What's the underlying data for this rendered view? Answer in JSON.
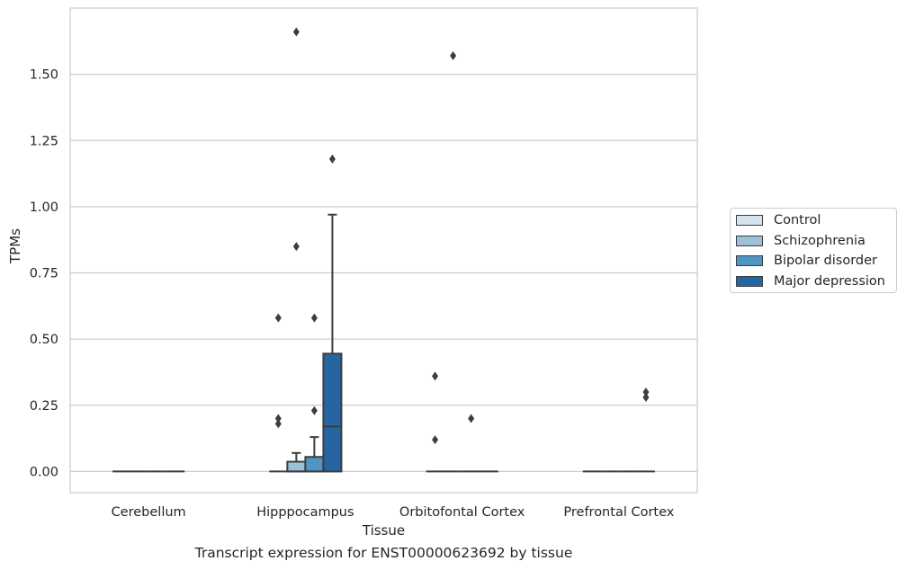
{
  "chart_data": {
    "type": "box",
    "caption": "Transcript expression for ENST00000623692 by tissue",
    "xlabel": "Tissue",
    "ylabel": "TPMs",
    "ylim": [
      -0.08,
      1.75
    ],
    "yticks": [
      "0.00",
      "0.25",
      "0.50",
      "0.75",
      "1.00",
      "1.25",
      "1.50"
    ],
    "grid": "horizontal",
    "legend_position": "right",
    "categories": [
      "Cerebellum",
      "Hipppocampus",
      "Orbitofontal Cortex",
      "Prefrontal Cortex"
    ],
    "series": [
      {
        "name": "Control",
        "color": "#d5e3ef",
        "boxes": [
          {
            "q1": 0,
            "median": 0,
            "q3": 0,
            "whislo": 0,
            "whishi": 0,
            "fliers": []
          },
          {
            "q1": 0,
            "median": 0,
            "q3": 0,
            "whislo": 0,
            "whishi": 0,
            "fliers": [
              0.18,
              0.2,
              0.58
            ]
          },
          {
            "q1": 0,
            "median": 0,
            "q3": 0,
            "whislo": 0,
            "whishi": 0,
            "fliers": [
              0.12,
              0.36
            ]
          },
          {
            "q1": 0,
            "median": 0,
            "q3": 0,
            "whislo": 0,
            "whishi": 0,
            "fliers": []
          }
        ]
      },
      {
        "name": "Schizophrenia",
        "color": "#9ac1d8",
        "boxes": [
          {
            "q1": 0,
            "median": 0,
            "q3": 0,
            "whislo": 0,
            "whishi": 0,
            "fliers": []
          },
          {
            "q1": 0,
            "median": 0,
            "q3": 0.037,
            "whislo": 0,
            "whishi": 0.07,
            "fliers": [
              0.85,
              1.66
            ]
          },
          {
            "q1": 0,
            "median": 0,
            "q3": 0,
            "whislo": 0,
            "whishi": 0,
            "fliers": [
              1.57
            ]
          },
          {
            "q1": 0,
            "median": 0,
            "q3": 0,
            "whislo": 0,
            "whishi": 0,
            "fliers": []
          }
        ]
      },
      {
        "name": "Bipolar disorder",
        "color": "#5096c2",
        "boxes": [
          {
            "q1": 0,
            "median": 0,
            "q3": 0,
            "whislo": 0,
            "whishi": 0,
            "fliers": []
          },
          {
            "q1": 0,
            "median": 0,
            "q3": 0.055,
            "whislo": 0,
            "whishi": 0.13,
            "fliers": [
              0.23,
              0.58
            ]
          },
          {
            "q1": 0,
            "median": 0,
            "q3": 0,
            "whislo": 0,
            "whishi": 0,
            "fliers": [
              0.2
            ]
          },
          {
            "q1": 0,
            "median": 0,
            "q3": 0,
            "whislo": 0,
            "whishi": 0,
            "fliers": []
          }
        ]
      },
      {
        "name": "Major depression",
        "color": "#2465a2",
        "boxes": [
          {
            "q1": 0,
            "median": 0,
            "q3": 0,
            "whislo": 0,
            "whishi": 0,
            "fliers": []
          },
          {
            "q1": 0,
            "median": 0.17,
            "q3": 0.445,
            "whislo": 0,
            "whishi": 0.97,
            "fliers": [
              1.18
            ]
          },
          {
            "q1": 0,
            "median": 0,
            "q3": 0,
            "whislo": 0,
            "whishi": 0,
            "fliers": []
          },
          {
            "q1": 0,
            "median": 0,
            "q3": 0,
            "whislo": 0,
            "whishi": 0,
            "fliers": [
              0.28,
              0.3
            ]
          }
        ]
      }
    ]
  }
}
